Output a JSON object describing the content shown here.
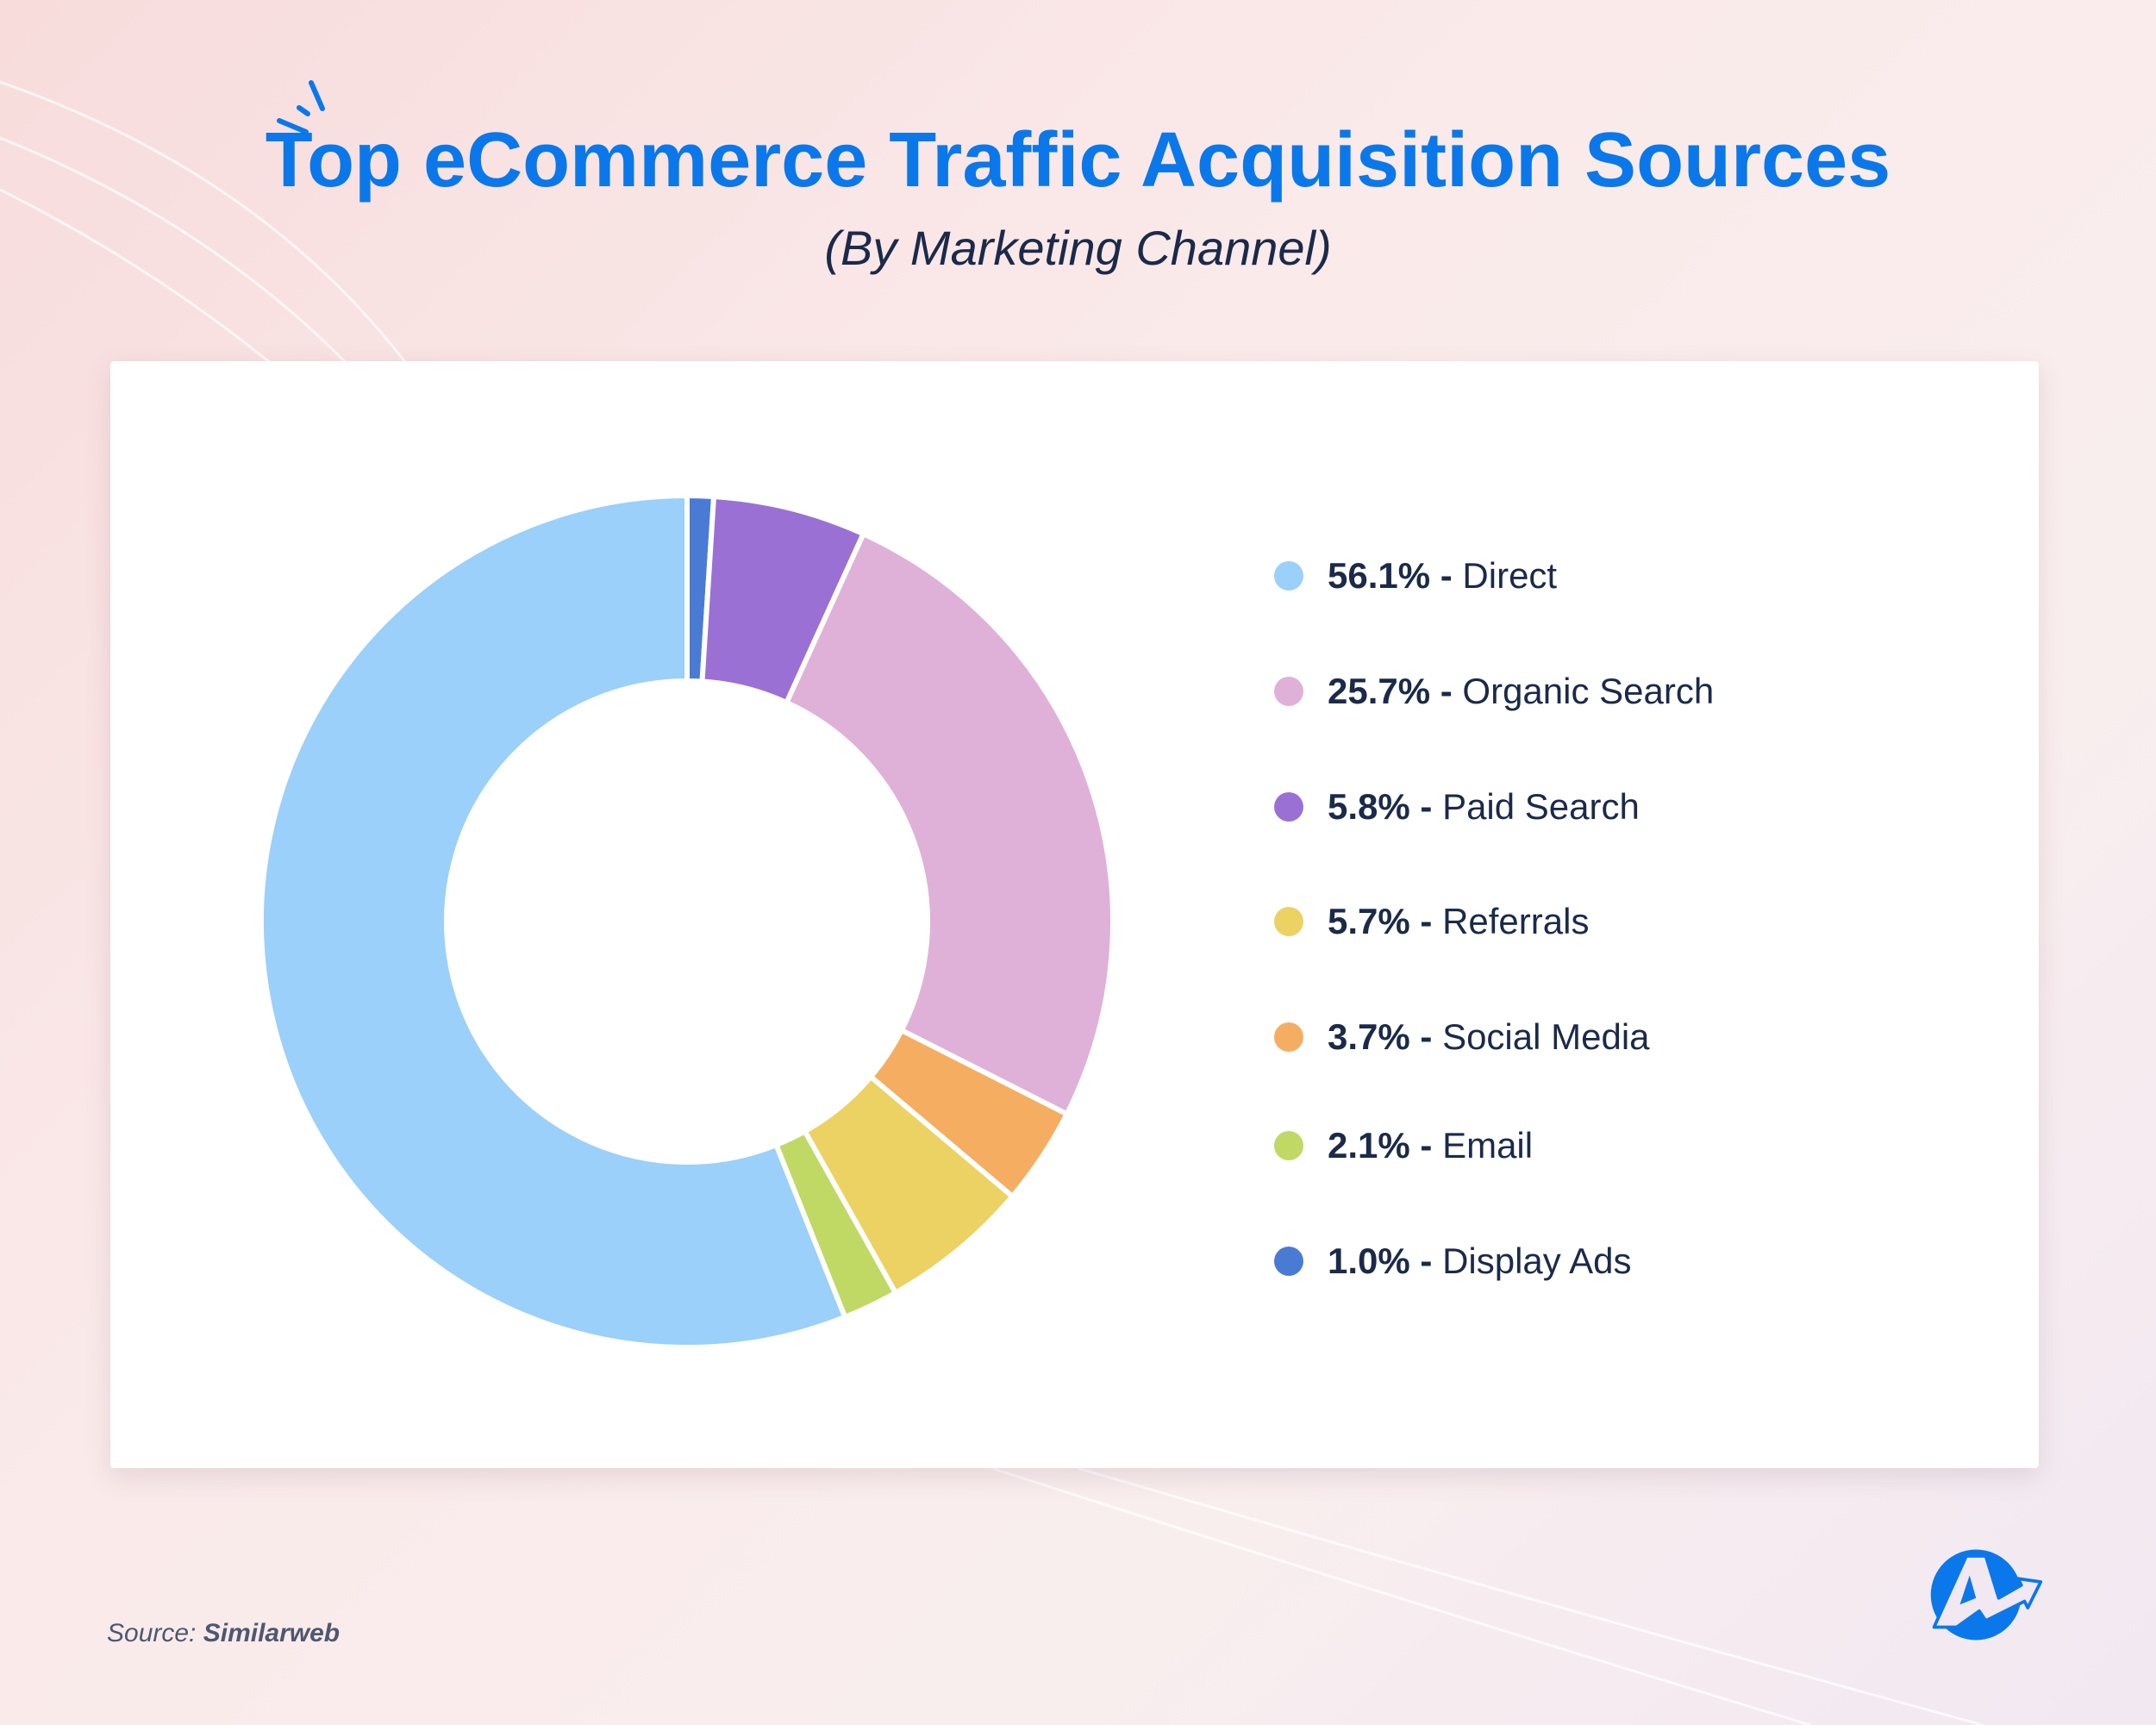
{
  "title": "Top eCommerce Traffic Acquisition Sources",
  "subtitle": "(By Marketing Channel)",
  "source_label": "Source:",
  "source_name": "Similarweb",
  "logo_icon": "brand-logo-a-arrow",
  "chart_data": {
    "type": "pie",
    "donut": true,
    "title": "Top eCommerce Traffic Acquisition Sources",
    "subtitle": "(By Marketing Channel)",
    "legend_position": "right",
    "unit": "%",
    "slices": [
      {
        "label": "Direct",
        "value": 56.1,
        "display": "56.1%",
        "color": "#9ad0f9"
      },
      {
        "label": "Organic Search",
        "value": 25.7,
        "display": "25.7%",
        "color": "#dfb1d8"
      },
      {
        "label": "Paid Search",
        "value": 5.8,
        "display": "5.8%",
        "color": "#9b70d4"
      },
      {
        "label": "Referrals",
        "value": 5.7,
        "display": "5.7%",
        "color": "#ecd262"
      },
      {
        "label": "Social Media",
        "value": 3.7,
        "display": "3.7%",
        "color": "#f5ad62"
      },
      {
        "label": "Email",
        "value": 2.1,
        "display": "2.1%",
        "color": "#bfd964"
      },
      {
        "label": "Display Ads",
        "value": 1.0,
        "display": "1.0%",
        "color": "#4a7bd4"
      }
    ],
    "clockwise_order_from_top": [
      "Display Ads",
      "Paid Search",
      "Organic Search",
      "Social Media",
      "Referrals",
      "Email",
      "Direct"
    ]
  }
}
